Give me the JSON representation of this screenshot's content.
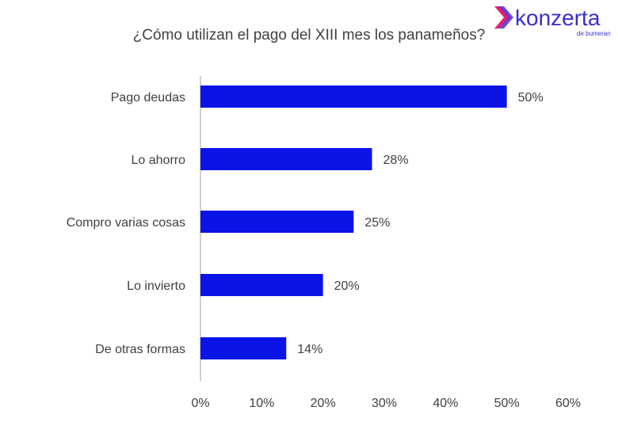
{
  "logo": {
    "brand": "konzerta",
    "sub": "de bumeran"
  },
  "chart_data": {
    "type": "bar",
    "orientation": "horizontal",
    "title": "¿Cómo utilizan el pago del XIII mes los panameños?",
    "categories": [
      "Pago deudas",
      "Lo ahorro",
      "Compro varias cosas",
      "Lo invierto",
      "De otras formas"
    ],
    "values": [
      50,
      28,
      25,
      20,
      14
    ],
    "data_labels": [
      "50%",
      "28%",
      "25%",
      "20%",
      "14%"
    ],
    "xlim": [
      0,
      60
    ],
    "x_ticks": [
      "0%",
      "10%",
      "20%",
      "30%",
      "40%",
      "50%",
      "60%"
    ],
    "grid": false,
    "legend": "none",
    "bar_color": "#0A14E6",
    "text_color": "#404040"
  }
}
